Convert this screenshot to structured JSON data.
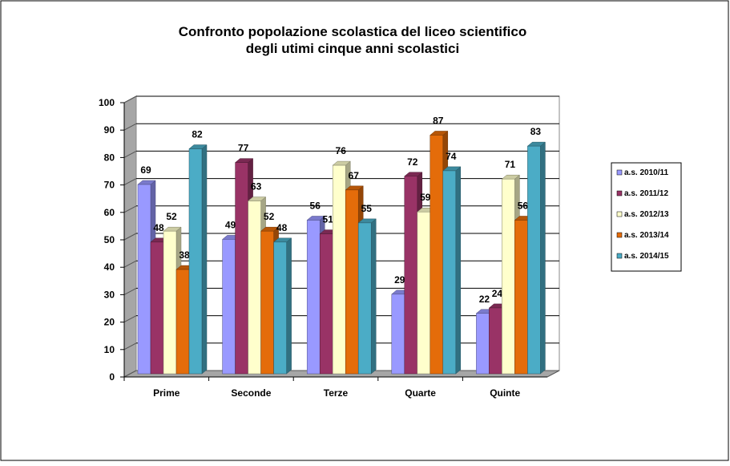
{
  "chart_data": {
    "type": "bar",
    "title": [
      "Confronto popolazione scolastica  del liceo scientifico",
      "degli utimi cinque anni  scolastici"
    ],
    "categories": [
      "Prime",
      "Seconde",
      "Terze",
      "Quarte",
      "Quinte"
    ],
    "series": [
      {
        "name": "a.s. 2010/11",
        "color": "#9999FF",
        "values": [
          69,
          49,
          56,
          29,
          22
        ]
      },
      {
        "name": "a.s. 2011/12",
        "color": "#993366",
        "values": [
          48,
          77,
          51,
          72,
          24
        ]
      },
      {
        "name": "a.s. 2012/13",
        "color": "#FFFFCC",
        "values": [
          52,
          63,
          76,
          59,
          71
        ]
      },
      {
        "name": "a.s. 2013/14",
        "color": "#E46C0A",
        "values": [
          38,
          52,
          67,
          87,
          56
        ]
      },
      {
        "name": "a.s. 2014/15",
        "color": "#4BACC6",
        "values": [
          82,
          48,
          55,
          74,
          83
        ]
      }
    ],
    "ylim": [
      0,
      100
    ],
    "yticks": [
      0,
      10,
      20,
      30,
      40,
      50,
      60,
      70,
      80,
      90,
      100
    ],
    "grid": true,
    "legend": "right",
    "style": "3d-clustered-column"
  }
}
